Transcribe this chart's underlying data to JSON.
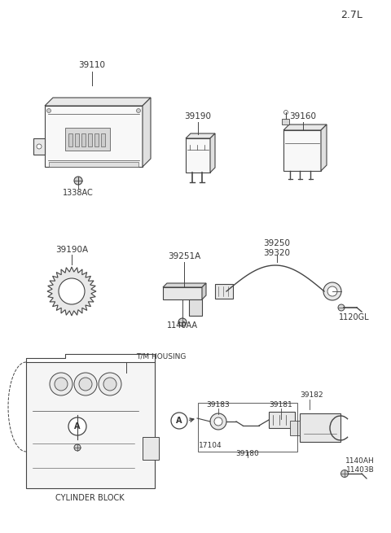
{
  "title": "2.7L",
  "bg_color": "#ffffff",
  "lc": "#444444",
  "tc": "#333333",
  "labels": {
    "ecm": "39110",
    "ecm_sub": "1338AC",
    "relay1": "39190",
    "relay2": "39160",
    "sensor_ring": "39190A",
    "bracket": "39251A",
    "bracket_bolt": "1140AA",
    "wire": "39250\n39320",
    "wire_bolt": "1120GL",
    "cylinder_block": "CYLINDER BLOCK",
    "tm_housing": "T/M HOUSING",
    "sensor_assy": "39180",
    "sensor_part1": "17104",
    "sensor_part2": "39183",
    "sensor_part3": "39181",
    "sensor_part4": "39182",
    "sensor_bolt": "1140AH\n11403B"
  }
}
